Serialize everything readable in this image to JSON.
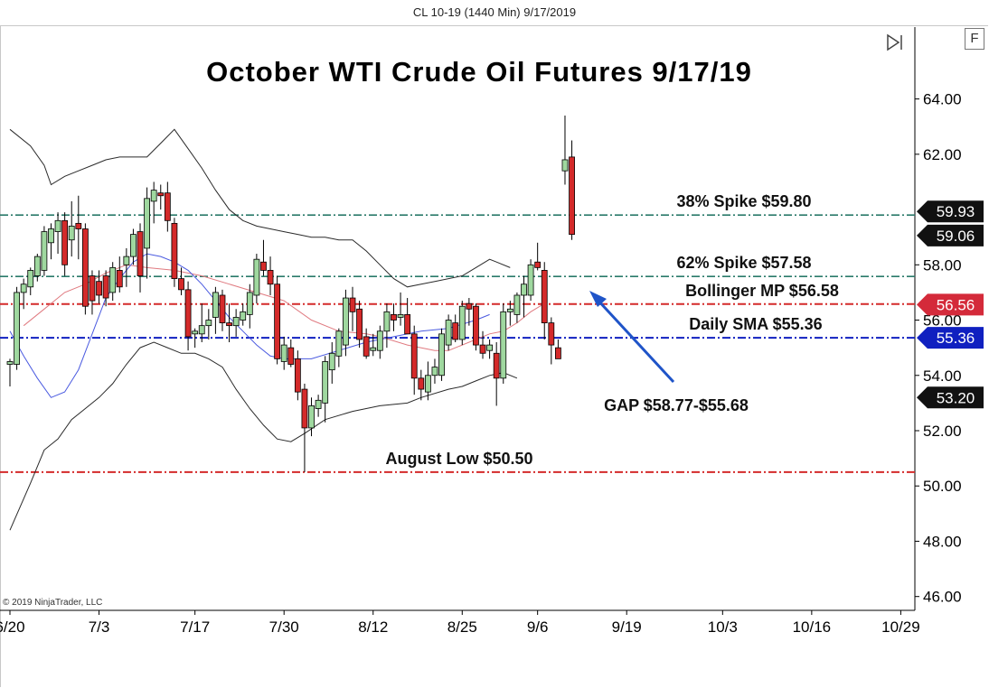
{
  "header": {
    "text": "CL 10-19 (1440 Min)  9/17/2019"
  },
  "title": "October WTI Crude Oil Futures 9/17/19",
  "copyright": "© 2019 NinjaTrader, LLC",
  "toolbar": {
    "format_button_label": "F",
    "icon": "play-pause-icon"
  },
  "colors": {
    "up": "#9fd89f",
    "down": "#d42a2a",
    "bollinger_band": "#2a2a2a",
    "bollinger_mid": "#e07a80",
    "sma": "#4a5ae0",
    "fib_lines": "#2a7a6a",
    "red_level": "#d42a2a",
    "blue_level": "#1020c0",
    "arrow": "#1f54c8"
  },
  "chart_data": {
    "type": "candlestick",
    "ylim": [
      45.5,
      66.6
    ],
    "y_ticks": [
      "64.00",
      "62.00",
      "58.00",
      "56.00",
      "54.00",
      "52.00",
      "50.00",
      "48.00",
      "46.00"
    ],
    "y_tick_values": [
      64,
      62,
      58,
      56,
      54,
      52,
      50,
      48,
      46
    ],
    "x_tick_labels": [
      "6/20",
      "7/3",
      "7/17",
      "7/30",
      "8/12",
      "8/25",
      "9/6",
      "9/19",
      "10/3",
      "10/16",
      "10/29"
    ],
    "x_tick_slots": [
      0,
      13,
      27,
      40,
      53,
      66,
      77,
      90,
      104,
      117,
      130
    ],
    "candles": [
      {
        "o": 54.4,
        "h": 54.6,
        "l": 53.6,
        "c": 54.5
      },
      {
        "o": 54.4,
        "h": 57.2,
        "l": 54.2,
        "c": 57.0
      },
      {
        "o": 57.0,
        "h": 57.5,
        "l": 56.4,
        "c": 57.3
      },
      {
        "o": 57.2,
        "h": 57.9,
        "l": 56.9,
        "c": 57.8
      },
      {
        "o": 57.6,
        "h": 58.4,
        "l": 57.4,
        "c": 58.3
      },
      {
        "o": 57.8,
        "h": 59.4,
        "l": 57.6,
        "c": 59.2
      },
      {
        "o": 58.8,
        "h": 59.5,
        "l": 58.2,
        "c": 59.3
      },
      {
        "o": 59.2,
        "h": 59.9,
        "l": 58.4,
        "c": 59.6
      },
      {
        "o": 59.6,
        "h": 59.9,
        "l": 57.6,
        "c": 58.0
      },
      {
        "o": 58.9,
        "h": 60.3,
        "l": 58.3,
        "c": 59.4
      },
      {
        "o": 59.5,
        "h": 60.5,
        "l": 58.2,
        "c": 59.3
      },
      {
        "o": 59.3,
        "h": 59.5,
        "l": 56.2,
        "c": 56.5
      },
      {
        "o": 57.6,
        "h": 57.8,
        "l": 56.2,
        "c": 56.7
      },
      {
        "o": 57.4,
        "h": 57.8,
        "l": 56.6,
        "c": 56.9
      },
      {
        "o": 57.6,
        "h": 57.8,
        "l": 56.5,
        "c": 56.8
      },
      {
        "o": 57.0,
        "h": 58.1,
        "l": 56.7,
        "c": 57.9
      },
      {
        "o": 57.8,
        "h": 58.3,
        "l": 57.0,
        "c": 57.2
      },
      {
        "o": 58.0,
        "h": 58.6,
        "l": 57.2,
        "c": 58.3
      },
      {
        "o": 58.3,
        "h": 59.3,
        "l": 58.0,
        "c": 59.1
      },
      {
        "o": 59.2,
        "h": 59.5,
        "l": 57.0,
        "c": 57.6
      },
      {
        "o": 58.6,
        "h": 60.8,
        "l": 57.5,
        "c": 60.4
      },
      {
        "o": 60.3,
        "h": 61.0,
        "l": 59.5,
        "c": 60.7
      },
      {
        "o": 60.6,
        "h": 60.9,
        "l": 60.0,
        "c": 60.5
      },
      {
        "o": 60.6,
        "h": 61.0,
        "l": 59.2,
        "c": 59.6
      },
      {
        "o": 59.5,
        "h": 59.7,
        "l": 57.2,
        "c": 57.5
      },
      {
        "o": 57.5,
        "h": 57.9,
        "l": 56.9,
        "c": 57.1
      },
      {
        "o": 57.1,
        "h": 57.4,
        "l": 54.9,
        "c": 55.4
      },
      {
        "o": 55.5,
        "h": 55.7,
        "l": 55.0,
        "c": 55.6
      },
      {
        "o": 55.5,
        "h": 56.6,
        "l": 55.2,
        "c": 55.8
      },
      {
        "o": 55.8,
        "h": 56.4,
        "l": 55.3,
        "c": 56.0
      },
      {
        "o": 56.1,
        "h": 57.2,
        "l": 55.5,
        "c": 57.0
      },
      {
        "o": 56.9,
        "h": 57.1,
        "l": 55.6,
        "c": 55.9
      },
      {
        "o": 55.9,
        "h": 56.6,
        "l": 55.2,
        "c": 55.8
      },
      {
        "o": 55.8,
        "h": 56.4,
        "l": 55.4,
        "c": 56.1
      },
      {
        "o": 56.0,
        "h": 56.6,
        "l": 55.8,
        "c": 56.3
      },
      {
        "o": 56.2,
        "h": 57.3,
        "l": 55.7,
        "c": 57.0
      },
      {
        "o": 56.9,
        "h": 58.4,
        "l": 56.6,
        "c": 58.2
      },
      {
        "o": 58.1,
        "h": 58.9,
        "l": 57.6,
        "c": 57.8
      },
      {
        "o": 57.8,
        "h": 58.3,
        "l": 56.9,
        "c": 57.3
      },
      {
        "o": 57.3,
        "h": 57.6,
        "l": 54.4,
        "c": 54.6
      },
      {
        "o": 54.5,
        "h": 55.4,
        "l": 54.2,
        "c": 55.1
      },
      {
        "o": 55.0,
        "h": 55.3,
        "l": 54.3,
        "c": 54.4
      },
      {
        "o": 54.6,
        "h": 54.9,
        "l": 53.1,
        "c": 53.4
      },
      {
        "o": 53.5,
        "h": 53.7,
        "l": 50.5,
        "c": 52.1
      },
      {
        "o": 52.1,
        "h": 53.2,
        "l": 51.8,
        "c": 52.9
      },
      {
        "o": 52.8,
        "h": 53.3,
        "l": 52.5,
        "c": 53.1
      },
      {
        "o": 53.0,
        "h": 54.7,
        "l": 52.3,
        "c": 54.5
      },
      {
        "o": 54.2,
        "h": 55.2,
        "l": 53.7,
        "c": 54.8
      },
      {
        "o": 54.7,
        "h": 55.7,
        "l": 54.3,
        "c": 55.6
      },
      {
        "o": 55.1,
        "h": 57.1,
        "l": 54.7,
        "c": 56.8
      },
      {
        "o": 56.8,
        "h": 57.2,
        "l": 55.6,
        "c": 56.3
      },
      {
        "o": 56.4,
        "h": 56.7,
        "l": 55.0,
        "c": 55.3
      },
      {
        "o": 55.4,
        "h": 55.7,
        "l": 54.6,
        "c": 54.7
      },
      {
        "o": 54.9,
        "h": 55.5,
        "l": 54.7,
        "c": 55.0
      },
      {
        "o": 54.9,
        "h": 55.8,
        "l": 54.6,
        "c": 55.6
      },
      {
        "o": 55.6,
        "h": 56.6,
        "l": 55.0,
        "c": 56.3
      },
      {
        "o": 56.2,
        "h": 56.6,
        "l": 55.6,
        "c": 56.0
      },
      {
        "o": 56.1,
        "h": 57.0,
        "l": 55.8,
        "c": 56.2
      },
      {
        "o": 56.2,
        "h": 56.8,
        "l": 55.6,
        "c": 55.5
      },
      {
        "o": 55.5,
        "h": 55.8,
        "l": 53.3,
        "c": 53.9
      },
      {
        "o": 53.9,
        "h": 54.2,
        "l": 53.1,
        "c": 53.5
      },
      {
        "o": 53.4,
        "h": 54.5,
        "l": 53.1,
        "c": 54.0
      },
      {
        "o": 54.0,
        "h": 54.6,
        "l": 53.7,
        "c": 54.3
      },
      {
        "o": 54.0,
        "h": 55.7,
        "l": 53.8,
        "c": 55.5
      },
      {
        "o": 55.1,
        "h": 56.2,
        "l": 54.9,
        "c": 56.0
      },
      {
        "o": 55.9,
        "h": 56.2,
        "l": 55.2,
        "c": 55.3
      },
      {
        "o": 55.3,
        "h": 56.7,
        "l": 55.1,
        "c": 56.5
      },
      {
        "o": 56.6,
        "h": 56.8,
        "l": 55.8,
        "c": 56.4
      },
      {
        "o": 56.5,
        "h": 56.6,
        "l": 54.9,
        "c": 55.1
      },
      {
        "o": 55.1,
        "h": 55.6,
        "l": 54.6,
        "c": 54.8
      },
      {
        "o": 54.9,
        "h": 55.3,
        "l": 54.6,
        "c": 55.1
      },
      {
        "o": 54.8,
        "h": 55.2,
        "l": 52.9,
        "c": 53.9
      },
      {
        "o": 53.9,
        "h": 56.6,
        "l": 53.7,
        "c": 56.3
      },
      {
        "o": 56.3,
        "h": 56.7,
        "l": 55.8,
        "c": 56.4
      },
      {
        "o": 56.2,
        "h": 57.0,
        "l": 55.9,
        "c": 56.9
      },
      {
        "o": 56.9,
        "h": 57.6,
        "l": 56.1,
        "c": 57.3
      },
      {
        "o": 56.9,
        "h": 58.2,
        "l": 56.7,
        "c": 58.0
      },
      {
        "o": 58.1,
        "h": 58.8,
        "l": 57.8,
        "c": 57.9
      },
      {
        "o": 57.8,
        "h": 58.1,
        "l": 55.3,
        "c": 55.9
      },
      {
        "o": 55.9,
        "h": 56.1,
        "l": 54.4,
        "c": 55.1
      },
      {
        "o": 55.0,
        "h": 55.3,
        "l": 54.6,
        "c": 54.6
      },
      {
        "o": 61.4,
        "h": 63.4,
        "l": 60.9,
        "c": 61.8
      },
      {
        "o": 61.9,
        "h": 62.5,
        "l": 58.9,
        "c": 59.1
      }
    ],
    "candle_slots": [
      0,
      1,
      2,
      3,
      4,
      5,
      6,
      7,
      8,
      9,
      10,
      11,
      12,
      13,
      14,
      15,
      16,
      17,
      18,
      19,
      20,
      21,
      22,
      23,
      24,
      25,
      26,
      27,
      28,
      29,
      30,
      31,
      32,
      33,
      34,
      35,
      36,
      37,
      38,
      39,
      40,
      41,
      42,
      43,
      44,
      45,
      46,
      47,
      48,
      49,
      50,
      51,
      52,
      53,
      54,
      55,
      56,
      57,
      58,
      59,
      60,
      61,
      62,
      63,
      64,
      65,
      66,
      67,
      68,
      69,
      70,
      71,
      72,
      73,
      74,
      75,
      76,
      77,
      78,
      79,
      80,
      81,
      82
    ],
    "bollinger_upper": [
      62.9,
      62.3,
      61.6,
      60.9,
      61.2,
      61.4,
      61.6,
      61.8,
      61.9,
      61.9,
      61.9,
      62.4,
      62.9,
      62.2,
      61.5,
      60.7,
      60.0,
      59.6,
      59.4,
      59.3,
      59.2,
      59.1,
      59.0,
      59.0,
      58.9,
      58.9,
      58.5,
      58.0,
      57.5,
      57.2,
      57.3,
      57.4,
      57.6,
      57.9,
      58.2,
      58.1,
      57.9
    ],
    "bollinger_upper_slots": [
      0,
      3,
      5,
      6,
      8,
      10,
      12,
      14,
      16,
      18,
      20,
      22,
      24,
      26,
      28,
      30,
      32,
      34,
      36,
      38,
      40,
      42,
      44,
      46,
      48,
      50,
      52,
      54,
      56,
      58,
      60,
      62,
      66,
      68,
      70,
      71,
      73
    ],
    "bollinger_lower": [
      48.4,
      50.1,
      51.3,
      51.7,
      52.4,
      52.8,
      53.2,
      53.7,
      54.4,
      55.0,
      55.2,
      55.0,
      54.8,
      54.8,
      54.6,
      54.3,
      53.5,
      52.8,
      52.2,
      51.7,
      51.6,
      51.9,
      52.4,
      52.7,
      52.9,
      53.0,
      53.2,
      53.5,
      53.6,
      53.8,
      54.0,
      54.1,
      53.9
    ],
    "bollinger_lower_slots": [
      0,
      3,
      5,
      7,
      9,
      11,
      13,
      15,
      17,
      19,
      21,
      23,
      25,
      27,
      29,
      31,
      33,
      35,
      37,
      39,
      41,
      43,
      46,
      50,
      54,
      58,
      60,
      64,
      66,
      68,
      70,
      72,
      74
    ],
    "bollinger_mid": [
      55.8,
      56.4,
      57.0,
      57.3,
      57.7,
      58.0,
      57.9,
      57.8,
      57.6,
      57.3,
      57.0,
      56.7,
      56.0,
      55.6,
      55.5,
      55.4,
      55.1,
      54.9,
      54.9,
      55.1,
      55.3,
      55.5,
      55.6,
      55.9,
      56.3,
      56.6
    ],
    "bollinger_mid_slots": [
      2,
      5,
      8,
      11,
      14,
      17,
      20,
      24,
      28,
      32,
      36,
      40,
      44,
      48,
      52,
      54,
      58,
      62,
      64,
      66,
      68,
      70,
      72,
      74,
      76,
      78
    ],
    "sma": [
      55.6,
      54.7,
      53.9,
      53.2,
      53.4,
      54.2,
      55.5,
      56.8,
      57.5,
      58.1,
      58.4,
      58.3,
      58.1,
      57.8,
      57.3,
      56.7,
      56.1,
      55.6,
      55.1,
      54.7,
      54.6,
      54.6,
      54.9,
      55.2,
      55.4,
      55.6,
      55.7,
      56.0,
      56.2
    ],
    "sma_slots": [
      0,
      2,
      4,
      6,
      8,
      10,
      12,
      14,
      16,
      18,
      20,
      22,
      24,
      26,
      28,
      30,
      32,
      34,
      36,
      38,
      40,
      44,
      48,
      52,
      56,
      60,
      64,
      68,
      70
    ],
    "horizontal_lines": [
      {
        "label": "38% Spike $59.80",
        "value": 59.8,
        "style": "teal-dashdot"
      },
      {
        "label": "62% Spike $57.58",
        "value": 57.58,
        "style": "teal-dashdot"
      },
      {
        "label": "Bollinger MP $56.58",
        "value": 56.58,
        "style": "red-dashdot"
      },
      {
        "label": "Daily SMA $55.36",
        "value": 55.36,
        "style": "blue-dashdot"
      },
      {
        "label": "August Low $50.50",
        "value": 50.5,
        "style": "red-dashdot"
      }
    ],
    "annotations": [
      {
        "text": "GAP $58.77-$55.68"
      }
    ],
    "price_markers": [
      {
        "text": "59.93",
        "value": 59.93,
        "color": "#111111"
      },
      {
        "text": "59.06",
        "value": 59.06,
        "color": "#111111"
      },
      {
        "text": "56.56",
        "value": 56.56,
        "color": "#d42a3a"
      },
      {
        "text": "55.36",
        "value": 55.36,
        "color": "#1020c0"
      },
      {
        "text": "53.20",
        "value": 53.2,
        "color": "#111111"
      }
    ]
  }
}
